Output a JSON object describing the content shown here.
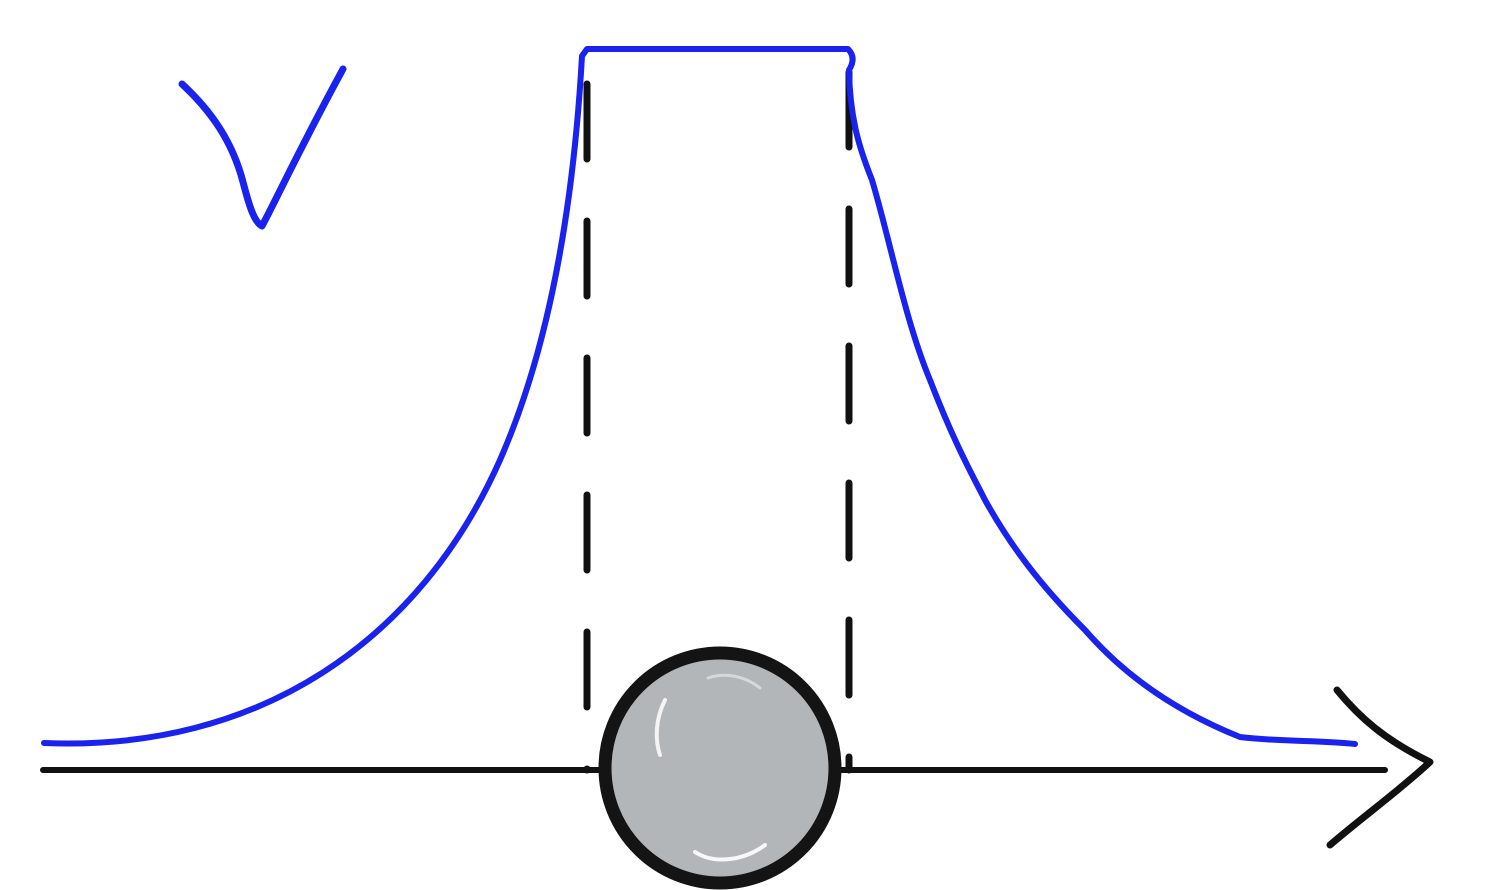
{
  "diagram": {
    "axis_label": "V",
    "colors": {
      "potential_curve": "#1a22ee",
      "axis": "#111111",
      "dashed_guides": "#111111",
      "sphere_outline": "#141414",
      "sphere_fill": "#b3b6b9",
      "sphere_highlight": "#ffffff",
      "background": "#ffffff"
    },
    "elements": {
      "potential_curve": "potential-curve",
      "horizontal_axis": "position-axis",
      "axis_arrowhead": "arrowhead-icon",
      "left_guide": "left-dashed-guide",
      "right_guide": "right-dashed-guide",
      "plateau": "potential-plateau",
      "sphere": "sphere-icon"
    }
  }
}
